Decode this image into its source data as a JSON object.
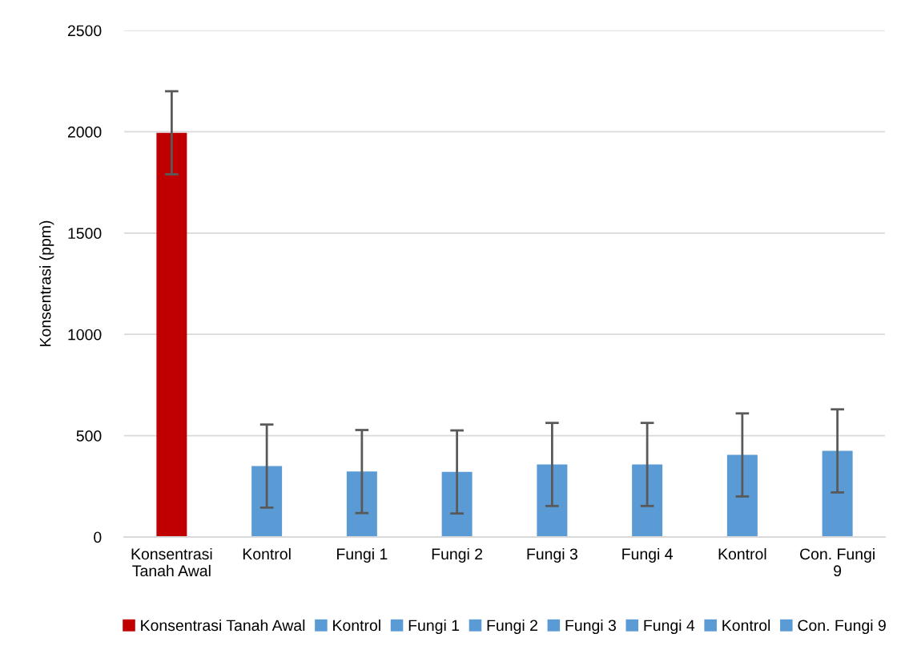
{
  "chart_data": {
    "type": "bar",
    "ylabel": "Konsentrasi (ppm)",
    "categories": [
      "Konsentrasi Tanah Awal",
      "Kontrol",
      "Fungi 1",
      "Fungi 2",
      "Fungi 3",
      "Fungi 4",
      "Kontrol",
      "Con. Fungi 9"
    ],
    "series": [
      {
        "name": "Konsentrasi Tanah Awal",
        "color": "#c00000",
        "values": [
          1995,
          null,
          null,
          null,
          null,
          null,
          null,
          null
        ],
        "errors": [
          205,
          null,
          null,
          null,
          null,
          null,
          null,
          null
        ]
      },
      {
        "name": "Kontrol",
        "color": "#5b9bd5",
        "values": [
          null,
          350,
          null,
          null,
          null,
          null,
          null,
          null
        ],
        "errors": [
          null,
          205,
          null,
          null,
          null,
          null,
          null,
          null
        ]
      },
      {
        "name": "Fungi 1",
        "color": "#5b9bd5",
        "values": [
          null,
          null,
          323,
          null,
          null,
          null,
          null,
          null
        ],
        "errors": [
          null,
          null,
          205,
          null,
          null,
          null,
          null,
          null
        ]
      },
      {
        "name": "Fungi 2",
        "color": "#5b9bd5",
        "values": [
          null,
          null,
          null,
          321,
          null,
          null,
          null,
          null
        ],
        "errors": [
          null,
          null,
          null,
          205,
          null,
          null,
          null,
          null
        ]
      },
      {
        "name": "Fungi 3",
        "color": "#5b9bd5",
        "values": [
          null,
          null,
          null,
          null,
          358,
          null,
          null,
          null
        ],
        "errors": [
          null,
          null,
          null,
          null,
          205,
          null,
          null,
          null
        ]
      },
      {
        "name": "Fungi 4",
        "color": "#5b9bd5",
        "values": [
          null,
          null,
          null,
          null,
          null,
          358,
          null,
          null
        ],
        "errors": [
          null,
          null,
          null,
          null,
          null,
          205,
          null,
          null
        ]
      },
      {
        "name": "Kontrol",
        "color": "#5b9bd5",
        "values": [
          null,
          null,
          null,
          null,
          null,
          null,
          405,
          null
        ],
        "errors": [
          null,
          null,
          null,
          null,
          null,
          null,
          205,
          null
        ]
      },
      {
        "name": "Con. Fungi 9",
        "color": "#5b9bd5",
        "values": [
          null,
          null,
          null,
          null,
          null,
          null,
          null,
          425
        ],
        "errors": [
          null,
          null,
          null,
          null,
          null,
          null,
          null,
          205
        ]
      }
    ],
    "ylim": [
      0,
      2500
    ],
    "yticks": [
      0,
      500,
      1000,
      1500,
      2000,
      2500
    ],
    "grid": "y",
    "legend": "bottom"
  }
}
